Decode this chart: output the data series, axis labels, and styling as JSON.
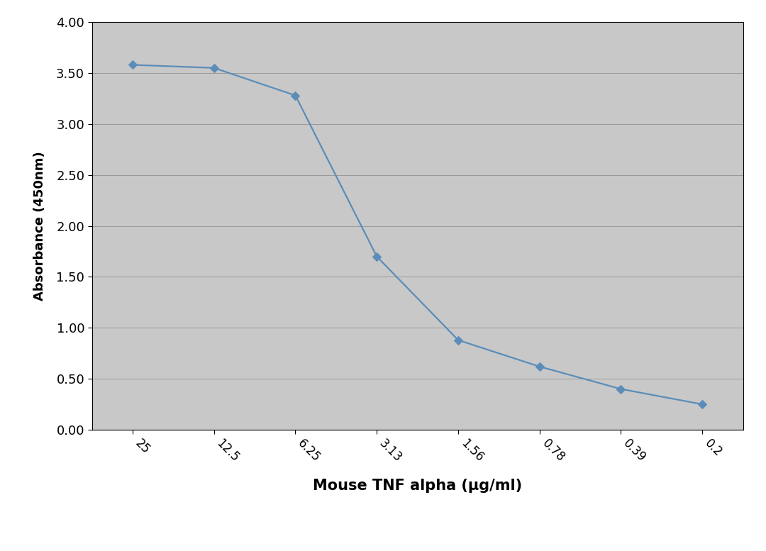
{
  "x_labels": [
    "25",
    "12.5",
    "6.25",
    "3.13",
    "1.56",
    "0.78",
    "0.39",
    "0.2"
  ],
  "y_values": [
    3.58,
    3.55,
    3.28,
    1.7,
    0.88,
    0.62,
    0.4,
    0.25
  ],
  "line_color": "#5b8db8",
  "marker_color": "#5b8db8",
  "marker_style": "D",
  "marker_size": 6,
  "line_width": 1.6,
  "xlabel": "Mouse TNF alpha (μg/ml)",
  "ylabel": "Absorbance (450nm)",
  "xlabel_fontsize": 15,
  "ylabel_fontsize": 13,
  "xlabel_fontweight": "bold",
  "ylabel_fontweight": "bold",
  "ylim": [
    0.0,
    4.0
  ],
  "yticks": [
    0.0,
    0.5,
    1.0,
    1.5,
    2.0,
    2.5,
    3.0,
    3.5,
    4.0
  ],
  "plot_bg_color": "#c8c8c8",
  "outer_bg_color": "#ffffff",
  "grid_color": "#999999",
  "tick_fontsize": 12,
  "ytick_fontsize": 13
}
